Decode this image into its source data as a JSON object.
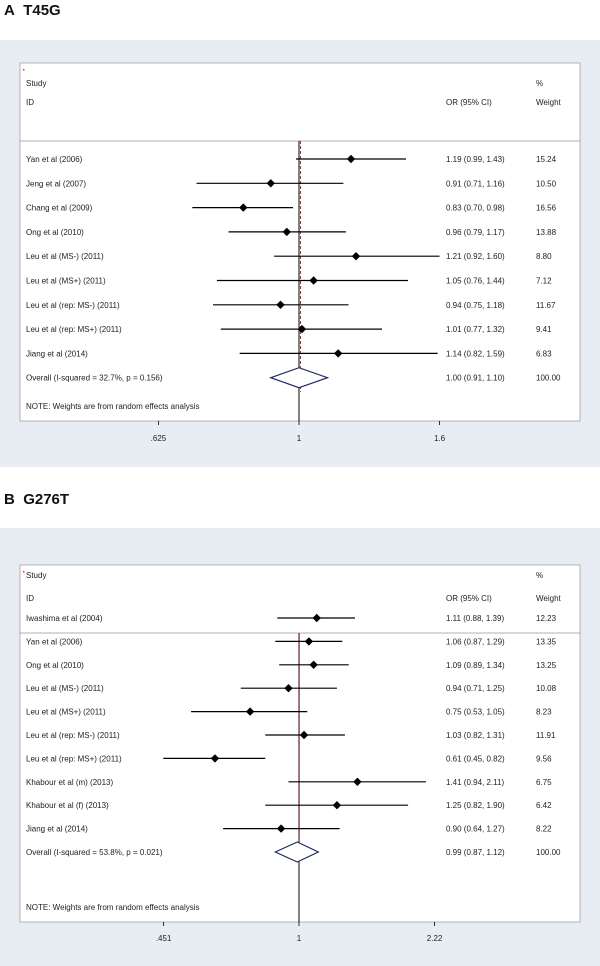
{
  "chart_data": [
    {
      "type": "forest",
      "panel_letter": "A",
      "title": "T45G",
      "header": {
        "study": "Study",
        "id": "ID",
        "or": "OR (95% CI)",
        "pct": "%",
        "weight": "Weight"
      },
      "xticks": [
        {
          "label": ".625",
          "value": 0.625
        },
        {
          "label": "1",
          "value": 1
        },
        {
          "label": "1.6",
          "value": 1.6
        }
      ],
      "xrange": [
        0.5,
        2.0
      ],
      "pooled_line": 1.0,
      "studies": [
        {
          "name": "Yan et al (2006)",
          "or": 1.19,
          "lo": 0.99,
          "hi": 1.43,
          "text": "1.19 (0.99, 1.43)",
          "weight": "15.24"
        },
        {
          "name": "Jeng et al (2007)",
          "or": 0.91,
          "lo": 0.71,
          "hi": 1.16,
          "text": "0.91 (0.71, 1.16)",
          "weight": "10.50"
        },
        {
          "name": "Chang et al (2009)",
          "or": 0.83,
          "lo": 0.7,
          "hi": 0.98,
          "text": "0.83 (0.70, 0.98)",
          "weight": "16.56"
        },
        {
          "name": "Ong et al (2010)",
          "or": 0.96,
          "lo": 0.79,
          "hi": 1.17,
          "text": "0.96 (0.79, 1.17)",
          "weight": "13.88"
        },
        {
          "name": "Leu et al (MS-) (2011)",
          "or": 1.21,
          "lo": 0.92,
          "hi": 1.6,
          "text": "1.21 (0.92, 1.60)",
          "weight": "8.80"
        },
        {
          "name": "Leu et al (MS+) (2011)",
          "or": 1.05,
          "lo": 0.76,
          "hi": 1.44,
          "text": "1.05 (0.76, 1.44)",
          "weight": "7.12"
        },
        {
          "name": "Leu et al (rep: MS-) (2011)",
          "or": 0.94,
          "lo": 0.75,
          "hi": 1.18,
          "text": "0.94 (0.75, 1.18)",
          "weight": "11.67"
        },
        {
          "name": "Leu et al (rep: MS+) (2011)",
          "or": 1.01,
          "lo": 0.77,
          "hi": 1.32,
          "text": "1.01 (0.77, 1.32)",
          "weight": "9.41"
        },
        {
          "name": "Jiang et al (2014)",
          "or": 1.14,
          "lo": 0.82,
          "hi": 1.59,
          "text": "1.14 (0.82, 1.59)",
          "weight": "6.83"
        }
      ],
      "overall": {
        "name": "Overall  (I-squared = 32.7%, p = 0.156)",
        "or": 1.0,
        "lo": 0.91,
        "hi": 1.1,
        "text": "1.00 (0.91, 1.10)",
        "weight": "100.00"
      },
      "note": "NOTE: Weights are from random effects analysis"
    },
    {
      "type": "forest",
      "panel_letter": "B",
      "title": "G276T",
      "header": {
        "study": "Study",
        "id": "ID",
        "or": "OR (95% CI)",
        "pct": "%",
        "weight": "Weight"
      },
      "xticks": [
        {
          "label": ".451",
          "value": 0.451
        },
        {
          "label": "1",
          "value": 1
        },
        {
          "label": "2.22",
          "value": 2.22
        }
      ],
      "xrange": [
        0.3,
        3.3
      ],
      "pooled_line": 0.99,
      "studies": [
        {
          "name": "Iwashima et al (2004)",
          "or": 1.11,
          "lo": 0.88,
          "hi": 1.39,
          "text": "1.11 (0.88, 1.39)",
          "weight": "12.23"
        },
        {
          "name": "Yan et al (2006)",
          "or": 1.06,
          "lo": 0.87,
          "hi": 1.29,
          "text": "1.06 (0.87, 1.29)",
          "weight": "13.35"
        },
        {
          "name": "Ong et al (2010)",
          "or": 1.09,
          "lo": 0.89,
          "hi": 1.34,
          "text": "1.09 (0.89, 1.34)",
          "weight": "13.25"
        },
        {
          "name": "Leu et al (MS-) (2011)",
          "or": 0.94,
          "lo": 0.71,
          "hi": 1.25,
          "text": "0.94 (0.71, 1.25)",
          "weight": "10.08"
        },
        {
          "name": "Leu et al (MS+) (2011)",
          "or": 0.75,
          "lo": 0.53,
          "hi": 1.05,
          "text": "0.75 (0.53, 1.05)",
          "weight": "8.23"
        },
        {
          "name": "Leu et al (rep: MS-) (2011)",
          "or": 1.03,
          "lo": 0.82,
          "hi": 1.31,
          "text": "1.03 (0.82, 1.31)",
          "weight": "11.91"
        },
        {
          "name": "Leu et al (rep: MS+) (2011)",
          "or": 0.61,
          "lo": 0.45,
          "hi": 0.82,
          "text": "0.61 (0.45, 0.82)",
          "weight": "9.56"
        },
        {
          "name": "Khabour et al (m) (2013)",
          "or": 1.41,
          "lo": 0.94,
          "hi": 2.11,
          "text": "1.41 (0.94, 2.11)",
          "weight": "6.75"
        },
        {
          "name": "Khabour et al (f) (2013)",
          "or": 1.25,
          "lo": 0.82,
          "hi": 1.9,
          "text": "1.25 (0.82, 1.90)",
          "weight": "6.42"
        },
        {
          "name": "Jiang et al (2014)",
          "or": 0.9,
          "lo": 0.64,
          "hi": 1.27,
          "text": "0.90 (0.64, 1.27)",
          "weight": "8.22"
        }
      ],
      "overall": {
        "name": "Overall  (I-squared = 53.8%, p = 0.021)",
        "or": 0.99,
        "lo": 0.87,
        "hi": 1.12,
        "text": "0.99 (0.87, 1.12)",
        "weight": "100.00"
      },
      "note": "NOTE: Weights are from random effects analysis"
    }
  ],
  "colors": {
    "panel_bg": "#e7edf2",
    "plot_bg": "#ffffff",
    "diamond": "#1f2a66",
    "pooled_line": "#b03030",
    "marker": "#000000"
  }
}
